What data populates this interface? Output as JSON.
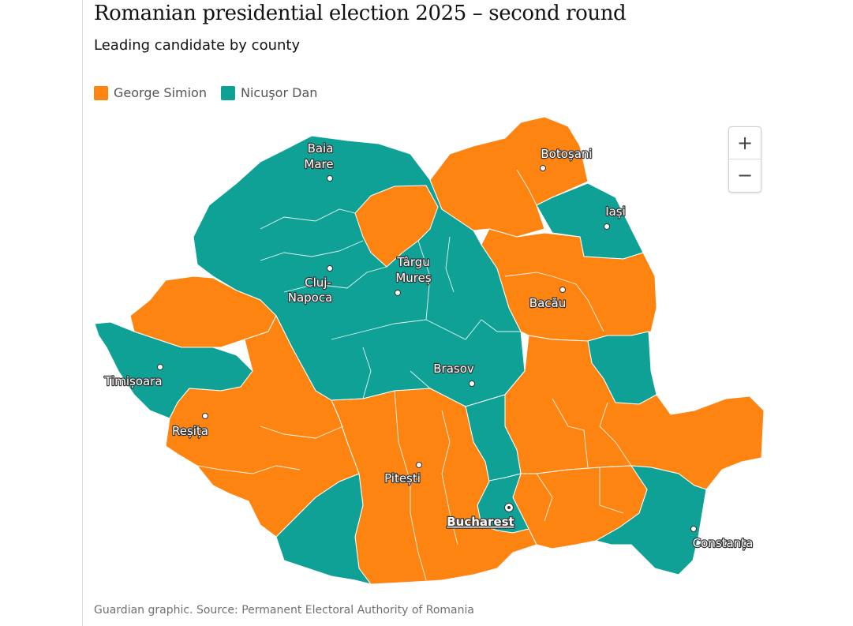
{
  "header": {
    "title": "Romanian presidential election 2025 – second round",
    "subtitle": "Leading candidate by county"
  },
  "legend": [
    {
      "label": "George Simion",
      "color": "#fe8412"
    },
    {
      "label": "Nicuşor Dan",
      "color": "#0fa195"
    }
  ],
  "cities": {
    "baia_mare_1": "Baia",
    "baia_mare_2": "Mare",
    "botosani": "Botoșani",
    "iasi": "Iași",
    "targu_mures_1": "Târgu",
    "targu_mures_2": "Mureș",
    "cluj_1": "Cluj-",
    "cluj_2": "Napoca",
    "bacau": "Bacău",
    "timisoara": "Timișoara",
    "brasov": "Brasov",
    "resita": "Reșița",
    "pitesti": "Pitești",
    "bucharest": "Bucharest",
    "constanta": "Constanța"
  },
  "zoom": {
    "in": "+",
    "out": "−"
  },
  "footer": {
    "source": "Guardian graphic. Source: Permanent Electoral Authority of Romania"
  }
}
